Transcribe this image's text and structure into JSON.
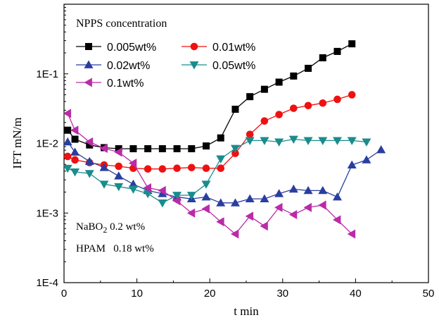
{
  "chart_data": {
    "type": "line",
    "xlabel": "t min",
    "ylabel": "IFT mN/m",
    "xlim": [
      0,
      50
    ],
    "ylim": [
      0.0001,
      1
    ],
    "y_scale": "log",
    "x_ticks": [
      0,
      10,
      20,
      30,
      40,
      50
    ],
    "y_ticks": [
      {
        "value": 0.0001,
        "label": "1E-4"
      },
      {
        "value": 0.001,
        "label": "1E-3"
      },
      {
        "value": 0.01,
        "label": "1E-2"
      },
      {
        "value": 0.1,
        "label": "1E-1"
      }
    ],
    "grid": false,
    "legend": {
      "title": "NPPS  concentration",
      "placement": "top-left"
    },
    "annotations": [
      {
        "text_main": "NaBO",
        "text_sub": "2",
        "text_tail": " 0.2 wt%"
      },
      {
        "text": "HPAM   0.18 wt%"
      }
    ],
    "series": [
      {
        "name": "0.005wt%",
        "color": "#000000",
        "marker": "square",
        "x": [
          0.5,
          1.5,
          3.5,
          5.5,
          7.5,
          9.5,
          11.5,
          13.5,
          15.5,
          17.5,
          19.5,
          21.5,
          23.5,
          25.5,
          27.5,
          29.5,
          31.5,
          33.5,
          35.5,
          37.5,
          39.5
        ],
        "y": [
          0.0155,
          0.0115,
          0.0095,
          0.0087,
          0.0084,
          0.0084,
          0.0084,
          0.0084,
          0.0084,
          0.0084,
          0.0092,
          0.012,
          0.031,
          0.047,
          0.06,
          0.076,
          0.093,
          0.12,
          0.17,
          0.21,
          0.27
        ]
      },
      {
        "name": "0.01wt%",
        "color": "#ee1111",
        "marker": "circle",
        "x": [
          0.5,
          1.5,
          3.5,
          5.5,
          7.5,
          9.5,
          11.5,
          13.5,
          15.5,
          17.5,
          19.5,
          21.5,
          23.5,
          25.5,
          27.5,
          29.5,
          31.5,
          33.5,
          35.5,
          37.5,
          39.5
        ],
        "y": [
          0.0065,
          0.0058,
          0.0053,
          0.0049,
          0.0047,
          0.0044,
          0.0043,
          0.0043,
          0.0044,
          0.0045,
          0.0044,
          0.0044,
          0.0072,
          0.0135,
          0.021,
          0.026,
          0.032,
          0.035,
          0.038,
          0.043,
          0.05
        ]
      },
      {
        "name": "0.02wt%",
        "color": "#2a3ea0",
        "marker": "triangle-up",
        "x": [
          0.5,
          1.5,
          3.5,
          5.5,
          7.5,
          9.5,
          11.5,
          13.5,
          15.5,
          17.5,
          19.5,
          21.5,
          23.5,
          25.5,
          27.5,
          29.5,
          31.5,
          33.5,
          35.5,
          37.5,
          39.5,
          41.5,
          43.5
        ],
        "y": [
          0.0105,
          0.0075,
          0.0055,
          0.0045,
          0.0034,
          0.0026,
          0.0021,
          0.0019,
          0.0017,
          0.0016,
          0.0017,
          0.0014,
          0.0014,
          0.0016,
          0.0016,
          0.0019,
          0.0022,
          0.0021,
          0.0021,
          0.0017,
          0.0049,
          0.0058,
          0.0081
        ]
      },
      {
        "name": "0.05wt%",
        "color": "#1a8c8c",
        "marker": "triangle-down",
        "x": [
          0.5,
          1.5,
          3.5,
          5.5,
          7.5,
          9.5,
          11.5,
          13.5,
          15.5,
          17.5,
          19.5,
          21.5,
          23.5,
          25.5,
          27.5,
          29.5,
          31.5,
          33.5,
          35.5,
          37.5,
          39.5,
          41.5
        ],
        "y": [
          0.0044,
          0.0039,
          0.0037,
          0.0026,
          0.0024,
          0.0022,
          0.0019,
          0.0014,
          0.0018,
          0.0018,
          0.0026,
          0.006,
          0.0085,
          0.011,
          0.011,
          0.0105,
          0.0115,
          0.011,
          0.011,
          0.011,
          0.011,
          0.0105
        ]
      },
      {
        "name": "0.1wt%",
        "color": "#bb2aa8",
        "marker": "triangle-left",
        "x": [
          0.5,
          1.5,
          3.5,
          5.5,
          7.5,
          9.5,
          11.5,
          13.5,
          15.5,
          17.5,
          19.5,
          21.5,
          23.5,
          25.5,
          27.5,
          29.5,
          31.5,
          33.5,
          35.5,
          37.5,
          39.5
        ],
        "y": [
          0.027,
          0.0155,
          0.0105,
          0.0085,
          0.0075,
          0.0052,
          0.0023,
          0.0021,
          0.0015,
          0.001,
          0.00115,
          0.00075,
          0.0005,
          0.0009,
          0.00065,
          0.0012,
          0.00095,
          0.0012,
          0.0013,
          0.0008,
          0.0005
        ]
      }
    ]
  }
}
